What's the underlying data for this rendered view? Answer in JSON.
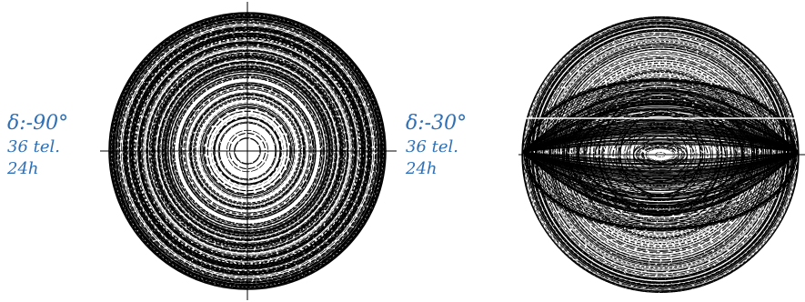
{
  "panels": [
    {
      "declination": "δ:-90°",
      "telescopes": "36 tel.",
      "duration": "24h",
      "coverage_shape": "concentric circles"
    },
    {
      "declination": "δ:-30°",
      "telescopes": "36 tel.",
      "duration": "24h",
      "coverage_shape": "ellipses with lens-shaped dense core"
    }
  ],
  "colors": {
    "label": "#2f6fb5",
    "tracks": "#000000",
    "axes": "#000000"
  }
}
